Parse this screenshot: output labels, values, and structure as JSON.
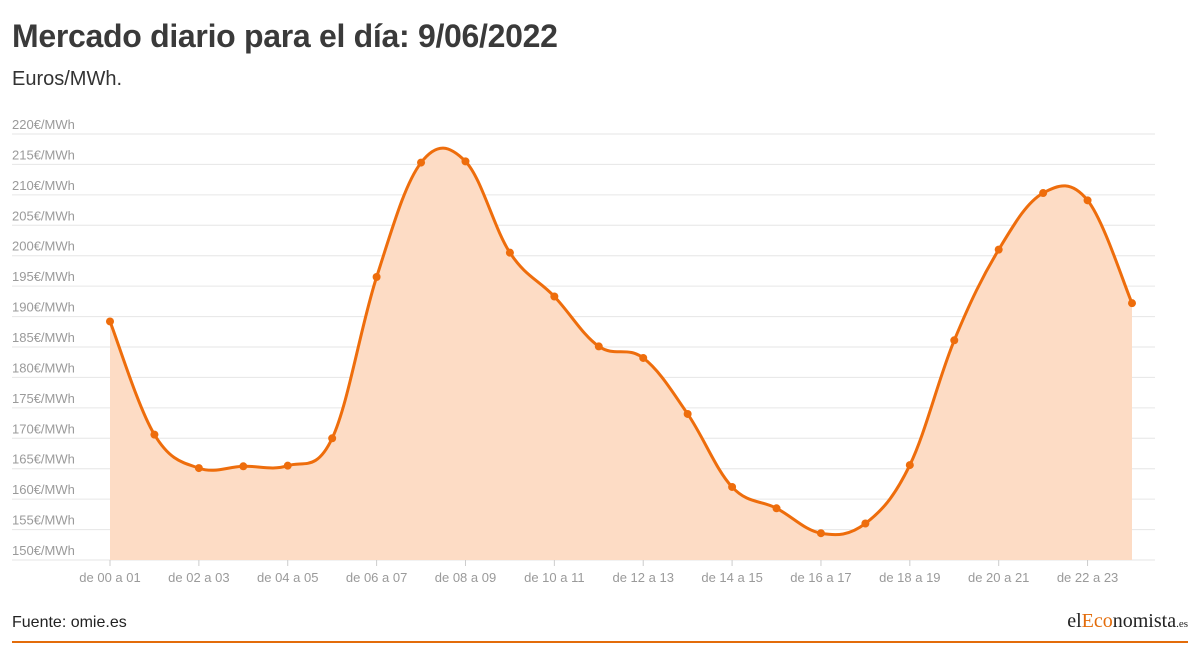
{
  "title": "Mercado diario para el día: 9/06/2022",
  "subtitle": "Euros/MWh.",
  "source": "Fuente: omie.es",
  "logo": {
    "part1": "el",
    "part2": "Eco",
    "part3": "nomista",
    "part4": ".es"
  },
  "colors": {
    "line": "#ee6d0c",
    "area": "#fddcc5",
    "grid": "#e6e6e6",
    "accent": "#e36c0a"
  },
  "chart_data": {
    "type": "area",
    "ylim": [
      150,
      220
    ],
    "yticks": [
      150,
      155,
      160,
      165,
      170,
      175,
      180,
      185,
      190,
      195,
      200,
      205,
      210,
      215,
      220
    ],
    "ytick_labels": [
      "150€/MWh",
      "155€/MWh",
      "160€/MWh",
      "165€/MWh",
      "170€/MWh",
      "175€/MWh",
      "180€/MWh",
      "185€/MWh",
      "190€/MWh",
      "195€/MWh",
      "200€/MWh",
      "205€/MWh",
      "210€/MWh",
      "215€/MWh",
      "220€/MWh"
    ],
    "xtick_labels": [
      "de 00 a 01",
      "de 02 a 03",
      "de 04 a 05",
      "de 06 a 07",
      "de 08 a 09",
      "de 10 a 11",
      "de 12 a 13",
      "de 14 a 15",
      "de 16 a 17",
      "de 18 a 19",
      "de 20 a 21",
      "de 22 a 23"
    ],
    "values": [
      189.2,
      170.6,
      165.1,
      165.4,
      165.5,
      170.0,
      196.5,
      215.3,
      215.5,
      200.5,
      193.3,
      185.1,
      183.2,
      174.0,
      162.0,
      158.5,
      154.4,
      156.0,
      165.6,
      186.1,
      201.0,
      210.3,
      209.1,
      192.2
    ]
  }
}
